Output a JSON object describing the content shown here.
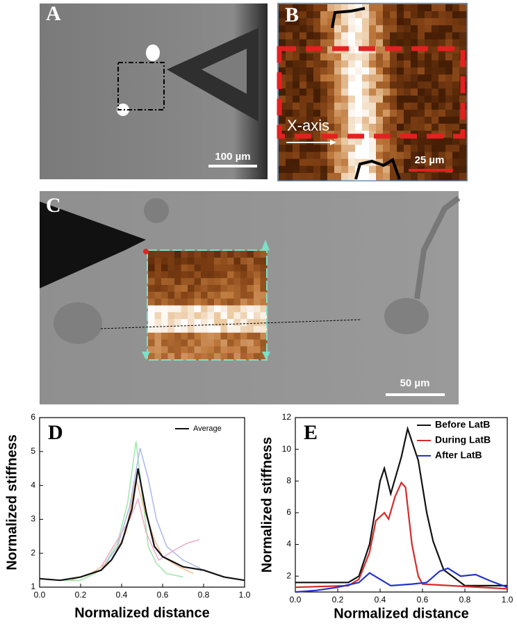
{
  "panels": {
    "a": {
      "label": "A",
      "scale": "100 µm"
    },
    "b": {
      "label": "B",
      "scale": "25 µm",
      "axis_note": "X-axis"
    },
    "c": {
      "label": "C",
      "scale": "50 µm"
    }
  },
  "chart_data": [
    {
      "type": "line",
      "label": "D",
      "ylabel": "Normalized stiffness",
      "xlabel": "Normalized distance",
      "xlim": [
        0,
        1
      ],
      "xticks": [
        {
          "value": 0,
          "label": "0.0"
        },
        {
          "value": 0.2,
          "label": "0.2"
        },
        {
          "value": 0.4,
          "label": "0.4"
        },
        {
          "value": 0.6,
          "label": "0.6"
        },
        {
          "value": 0.8,
          "label": "0.8"
        },
        {
          "value": 1,
          "label": "1.0"
        }
      ],
      "ylim": [
        1,
        6
      ],
      "yticks": [
        1,
        2,
        3,
        4,
        5,
        6
      ],
      "legend": "upper-right",
      "legend_style": "small",
      "series": [
        {
          "color": "#9ee6a8",
          "x": [
            0.1,
            0.2,
            0.3,
            0.38,
            0.43,
            0.47,
            0.5,
            0.53,
            0.57,
            0.62,
            0.7
          ],
          "values": [
            1.2,
            1.2,
            1.5,
            2.3,
            3.5,
            5.3,
            3.8,
            2.2,
            1.7,
            1.4,
            1.3
          ]
        },
        {
          "color": "#a9b8ea",
          "x": [
            0.2,
            0.3,
            0.38,
            0.44,
            0.49,
            0.53,
            0.57,
            0.62,
            0.7,
            0.8
          ],
          "values": [
            1.3,
            1.5,
            2.2,
            3.4,
            5.1,
            4.2,
            3,
            2.2,
            1.8,
            1.5
          ]
        },
        {
          "color": "#f2b98a",
          "x": [
            0.15,
            0.25,
            0.35,
            0.42,
            0.47,
            0.51,
            0.56,
            0.6,
            0.68,
            0.75
          ],
          "values": [
            1.2,
            1.4,
            1.8,
            2.6,
            4.2,
            3.3,
            2.4,
            1.9,
            1.6,
            1.4
          ]
        },
        {
          "color": "#f0a9c8",
          "x": [
            0.3,
            0.38,
            0.44,
            0.48,
            0.52,
            0.58,
            0.66,
            0.72,
            0.78
          ],
          "values": [
            1.6,
            2.4,
            3,
            3.6,
            2.6,
            1.8,
            2.1,
            2.3,
            2.4
          ]
        },
        {
          "name": "Average",
          "color": "#111111",
          "x": [
            0,
            0.1,
            0.2,
            0.3,
            0.35,
            0.4,
            0.45,
            0.48,
            0.52,
            0.56,
            0.6,
            0.7,
            0.8,
            0.9,
            1
          ],
          "values": [
            1.25,
            1.2,
            1.3,
            1.5,
            1.8,
            2.3,
            3.3,
            4.5,
            3.2,
            2.2,
            1.9,
            1.6,
            1.5,
            1.3,
            1.2
          ]
        }
      ]
    },
    {
      "type": "line",
      "label": "E",
      "ylabel": "Normalized stiffness",
      "xlabel": "Normalized distance",
      "xlim": [
        0,
        1
      ],
      "xticks": [
        {
          "value": 0,
          "label": "0.0"
        },
        {
          "value": 0.2,
          "label": "0.2"
        },
        {
          "value": 0.4,
          "label": "0.4"
        },
        {
          "value": 0.6,
          "label": "0.6"
        },
        {
          "value": 0.8,
          "label": "0.8"
        },
        {
          "value": 1,
          "label": "1.0"
        }
      ],
      "ylim": [
        1,
        12
      ],
      "yticks": [
        2,
        4,
        6,
        8,
        10,
        12
      ],
      "legend": "upper-right",
      "legend_style": "bold",
      "series": [
        {
          "name": "Before LatB",
          "color": "#111111",
          "x": [
            0,
            0.25,
            0.3,
            0.35,
            0.4,
            0.42,
            0.45,
            0.5,
            0.53,
            0.58,
            0.62,
            0.65,
            0.7,
            0.75,
            0.8,
            1
          ],
          "values": [
            1.6,
            1.6,
            2,
            4,
            8,
            8.8,
            7.2,
            9.5,
            11.3,
            9.3,
            6,
            4.2,
            2.4,
            1.9,
            1.4,
            1.4
          ]
        },
        {
          "name": "During LatB",
          "color": "#d42a2a",
          "x": [
            0,
            0.25,
            0.3,
            0.35,
            0.38,
            0.42,
            0.44,
            0.47,
            0.5,
            0.52,
            0.55,
            0.58,
            0.6,
            1
          ],
          "values": [
            1.3,
            1.4,
            1.8,
            3.5,
            5.5,
            6,
            5.6,
            7,
            7.9,
            7.6,
            4,
            2,
            1.5,
            1.2
          ]
        },
        {
          "name": "After LatB",
          "color": "#2233cc",
          "x": [
            0,
            0.1,
            0.2,
            0.3,
            0.35,
            0.4,
            0.45,
            0.55,
            0.62,
            0.68,
            0.72,
            0.78,
            0.85,
            0.92,
            1
          ],
          "values": [
            1,
            1.1,
            1.3,
            1.6,
            2.2,
            1.8,
            1.4,
            1.5,
            1.6,
            2.3,
            2.5,
            2,
            2.1,
            1.7,
            1.3
          ]
        }
      ]
    }
  ]
}
